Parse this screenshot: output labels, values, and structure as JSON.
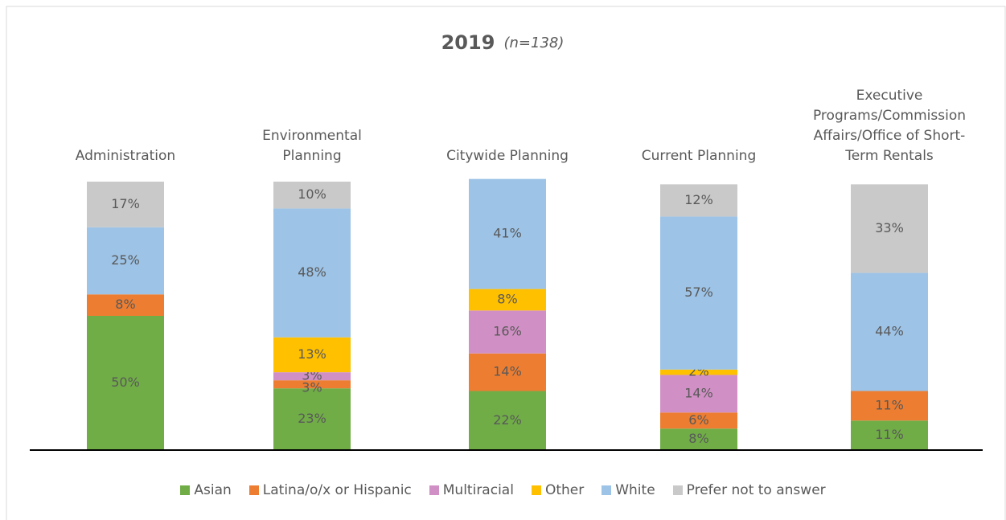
{
  "chart_data": {
    "type": "stacked_bar",
    "title": "2019",
    "subtitle": "(n=138)",
    "categories": [
      "Administration",
      "Environmental Planning",
      "Citywide Planning",
      "Current Planning",
      "Executive Programs/Commission Affairs/Office of Short-Term Rentals"
    ],
    "series": [
      {
        "name": "Asian",
        "color": "#70ad47",
        "values": [
          50,
          23,
          22,
          8,
          11
        ],
        "value_labels": [
          "50%",
          "23%",
          "22%",
          "8%",
          "11%"
        ]
      },
      {
        "name": "Latina/o/x or Hispanic",
        "color": "#ed7d31",
        "values": [
          8,
          3,
          14,
          6,
          11
        ],
        "value_labels": [
          "8%",
          "3%",
          "14%",
          "6%",
          "11%"
        ]
      },
      {
        "name": "Multiracial",
        "color": "#d190c5",
        "values": [
          null,
          3,
          16,
          14,
          null
        ],
        "value_labels": [
          null,
          "3%",
          "16%",
          "14%",
          null
        ]
      },
      {
        "name": "Other",
        "color": "#ffc000",
        "values": [
          null,
          13,
          8,
          2,
          null
        ],
        "value_labels": [
          null,
          "13%",
          "8%",
          "2%",
          null
        ]
      },
      {
        "name": "White",
        "color": "#9dc3e6",
        "values": [
          25,
          48,
          41,
          57,
          44
        ],
        "value_labels": [
          "25%",
          "48%",
          "41%",
          "57%",
          "44%"
        ]
      },
      {
        "name": "Prefer not to answer",
        "color": "#c9c9c9",
        "values": [
          17,
          10,
          null,
          12,
          33
        ],
        "value_labels": [
          "17%",
          "10%",
          null,
          "12%",
          "33%"
        ]
      }
    ],
    "ylim": [
      0,
      100
    ]
  }
}
